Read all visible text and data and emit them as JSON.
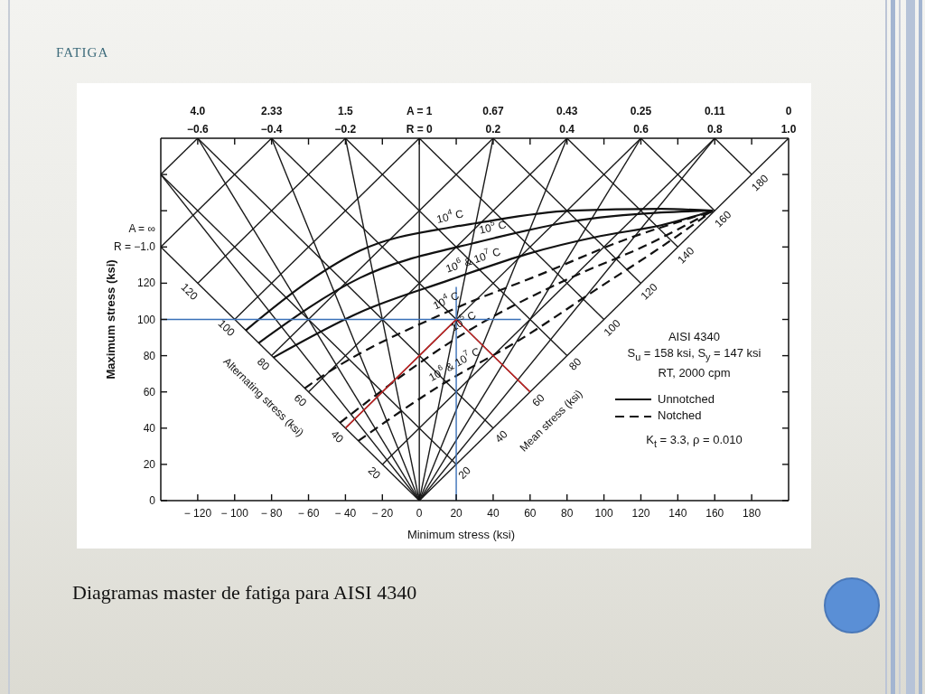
{
  "chart_data": {
    "type": "line",
    "title": "FATIGA",
    "subtitle": "Diagramas master de fatiga para AISI 4340",
    "xlabel": "Minimum stress (ksi)",
    "ylabel": "Maximum stress (ksi)",
    "xlim": [
      -140,
      200
    ],
    "xticks": [
      -120,
      -100,
      -80,
      -60,
      -40,
      -20,
      0,
      20,
      40,
      60,
      80,
      100,
      120,
      140,
      160,
      180
    ],
    "ylim": [
      0,
      200
    ],
    "yticks": [
      0,
      20,
      40,
      60,
      80,
      100,
      120,
      {
        "value": 140,
        "label": null
      },
      {
        "value": 160,
        "label": null
      },
      {
        "value": 180,
        "label": null
      }
    ],
    "legend": "bottom right",
    "line_style": "solid",
    "annotations": [
      "AISI 4340",
      "S$_{u}$ = 158 ksi, S$_{y}$ = 147 ksi",
      "RT, 2000 cpm",
      "K$_{t}$ = 3.3, ρ = 0.010",
      {
        "text": "10$^{4}$ C",
        "x": 18,
        "y": 151
      },
      {
        "text": "10$^{5}$ C",
        "x": 41,
        "y": 145
      },
      {
        "text": "10$^{6}$ & 10$^{7}$ C",
        "x": 31,
        "y": 127
      },
      {
        "text": "10$^{4}$ C",
        "x": 17,
        "y": 105
      },
      {
        "text": "10$^{5}$ C",
        "x": 27,
        "y": 94
      },
      {
        "text": "10$^{6}$ & 10$^{7}$ C",
        "x": 22,
        "y": 70
      },
      {
        "text": "20",
        "x": -20,
        "y": 20
      },
      {
        "text": "40",
        "x": -40,
        "y": 40
      },
      {
        "text": "60",
        "x": -60,
        "y": 60
      },
      {
        "text": "80",
        "x": -80,
        "y": 80
      },
      {
        "text": "100",
        "x": -100,
        "y": 100
      },
      {
        "text": "120",
        "x": -120,
        "y": 120
      },
      {
        "text": "Alternating stress (ksi)",
        "x": -71,
        "y": 71
      },
      {
        "text": "20",
        "x": 20,
        "y": 20
      },
      {
        "text": "40",
        "x": 40,
        "y": 40
      },
      {
        "text": "60",
        "x": 60,
        "y": 60
      },
      {
        "text": "80",
        "x": 80,
        "y": 80
      },
      {
        "text": "100",
        "x": 100,
        "y": 100
      },
      {
        "text": "120",
        "x": 120,
        "y": 120
      },
      {
        "text": "140",
        "x": 140,
        "y": 140
      },
      {
        "text": "160",
        "x": 160,
        "y": 160
      },
      {
        "text": "180",
        "x": 180,
        "y": 180
      },
      {
        "text": "Mean stress (ksi)",
        "x": 58,
        "y": 58
      },
      {
        "text": "4.0\n−0.6",
        "x": -120,
        "y": 200
      },
      {
        "text": "2.33\n−0.4",
        "x": -80,
        "y": 200
      },
      {
        "text": "1.5\n−0.2",
        "x": -40,
        "y": 200
      },
      {
        "text": "A = 1\nR = 0",
        "x": 0,
        "y": 200
      },
      {
        "text": "0.67\n0.2",
        "x": 40,
        "y": 200
      },
      {
        "text": "0.43\n0.4",
        "x": 80,
        "y": 200
      },
      {
        "text": "0.25\n0.6",
        "x": 120,
        "y": 200
      },
      {
        "text": "0.11\n0.8",
        "x": 160,
        "y": 200
      },
      {
        "text": "0\n1.0",
        "x": 200,
        "y": 200
      },
      {
        "text": "A = ∞\nR = −1.0",
        "x": -140,
        "y": 140
      }
    ],
    "series": [
      {
        "color": "#1a1a1a",
        "x": [
          0,
          -140
        ],
        "values": [
          0,
          140
        ]
      },
      {
        "color": "#1a1a1a",
        "x": [
          0,
          -140
        ],
        "values": [
          0,
          180
        ]
      },
      {
        "color": "#1a1a1a",
        "x": [
          0,
          -120
        ],
        "values": [
          0,
          200
        ]
      },
      {
        "color": "#1a1a1a",
        "x": [
          0,
          -80
        ],
        "values": [
          0,
          200
        ]
      },
      {
        "color": "#1a1a1a",
        "x": [
          0,
          -40
        ],
        "values": [
          0,
          200
        ]
      },
      {
        "color": "#1a1a1a",
        "x": [
          0,
          0
        ],
        "values": [
          0,
          200
        ]
      },
      {
        "color": "#1a1a1a",
        "x": [
          0,
          40
        ],
        "values": [
          0,
          200
        ]
      },
      {
        "color": "#1a1a1a",
        "x": [
          0,
          80
        ],
        "values": [
          0,
          200
        ]
      },
      {
        "color": "#1a1a1a",
        "x": [
          0,
          120
        ],
        "values": [
          0,
          200
        ]
      },
      {
        "color": "#1a1a1a",
        "x": [
          0,
          160
        ],
        "values": [
          0,
          200
        ]
      },
      {
        "color": "#1a1a1a",
        "x": [
          0,
          200
        ],
        "values": [
          0,
          200
        ]
      },
      {
        "color": "#1a1a1a",
        "x": [
          -20,
          160
        ],
        "values": [
          20,
          200
        ]
      },
      {
        "color": "#1a1a1a",
        "x": [
          -40,
          120
        ],
        "values": [
          40,
          200
        ]
      },
      {
        "color": "#1a1a1a",
        "x": [
          -60,
          80
        ],
        "values": [
          60,
          200
        ]
      },
      {
        "color": "#1a1a1a",
        "x": [
          -80,
          40
        ],
        "values": [
          80,
          200
        ]
      },
      {
        "color": "#1a1a1a",
        "x": [
          -100,
          0
        ],
        "values": [
          100,
          200
        ]
      },
      {
        "color": "#1a1a1a",
        "x": [
          -120,
          -40
        ],
        "values": [
          120,
          200
        ]
      },
      {
        "color": "#1a1a1a",
        "x": [
          -140,
          -80
        ],
        "values": [
          140,
          200
        ]
      },
      {
        "color": "#1a1a1a",
        "x": [
          -140,
          -120
        ],
        "values": [
          180,
          200
        ]
      },
      {
        "color": "#1a1a1a",
        "x": [
          20,
          -140
        ],
        "values": [
          20,
          180
        ]
      },
      {
        "color": "#1a1a1a",
        "x": [
          40,
          -120
        ],
        "values": [
          40,
          200
        ]
      },
      {
        "color": "#1a1a1a",
        "x": [
          60,
          -80
        ],
        "values": [
          60,
          200
        ]
      },
      {
        "color": "#1a1a1a",
        "x": [
          80,
          -40
        ],
        "values": [
          80,
          200
        ]
      },
      {
        "color": "#1a1a1a",
        "x": [
          100,
          0
        ],
        "values": [
          100,
          200
        ]
      },
      {
        "color": "#1a1a1a",
        "x": [
          120,
          40
        ],
        "values": [
          120,
          200
        ]
      },
      {
        "color": "#1a1a1a",
        "x": [
          140,
          80
        ],
        "values": [
          140,
          200
        ]
      },
      {
        "color": "#1a1a1a",
        "x": [
          160,
          120
        ],
        "values": [
          160,
          200
        ]
      },
      {
        "color": "#1a1a1a",
        "x": [
          180,
          160
        ],
        "values": [
          180,
          200
        ]
      },
      {
        "name": "Unnotched",
        "color": "#111111",
        "x": [
          -94,
          -60,
          -32,
          18,
          30,
          82,
          131,
          159
        ],
        "values": [
          94,
          121,
          138,
          151,
          153,
          160,
          161,
          160
        ]
      },
      {
        "color": "#111111",
        "x": [
          -87,
          -32,
          33,
          41,
          82,
          131,
          159
        ],
        "values": [
          87,
          123,
          143,
          145,
          154,
          159,
          160
        ]
      },
      {
        "color": "#111111",
        "x": [
          -79,
          -32,
          17,
          31,
          58,
          98,
          131,
          159
        ],
        "values": [
          79,
          104,
          122,
          127,
          136,
          146,
          152,
          160
        ]
      },
      {
        "name": "Notched",
        "color": "#111111",
        "line_style": "dashed",
        "x": [
          -62,
          -55,
          17,
          66,
          114,
          147,
          159
        ],
        "values": [
          62,
          67,
          105,
          125,
          145,
          156,
          160
        ]
      },
      {
        "color": "#111111",
        "line_style": "dashed",
        "x": [
          -43,
          27,
          82,
          123,
          159
        ],
        "values": [
          43,
          94,
          123,
          141,
          160
        ]
      },
      {
        "color": "#111111",
        "line_style": "dashed",
        "x": [
          -33,
          17,
          22,
          50,
          98,
          131,
          159
        ],
        "values": [
          33,
          67,
          70,
          86,
          118,
          140,
          160
        ]
      },
      {
        "color": "#3a70b8",
        "x": [
          -140,
          55
        ],
        "values": [
          100,
          100
        ]
      },
      {
        "color": "#3a70b8",
        "x": [
          20,
          20
        ],
        "values": [
          0,
          118
        ]
      },
      {
        "color": "#cc2020",
        "x": [
          -40,
          20
        ],
        "values": [
          40,
          100
        ]
      },
      {
        "color": "#cc2020",
        "x": [
          20,
          60
        ],
        "values": [
          100,
          60
        ]
      }
    ]
  }
}
